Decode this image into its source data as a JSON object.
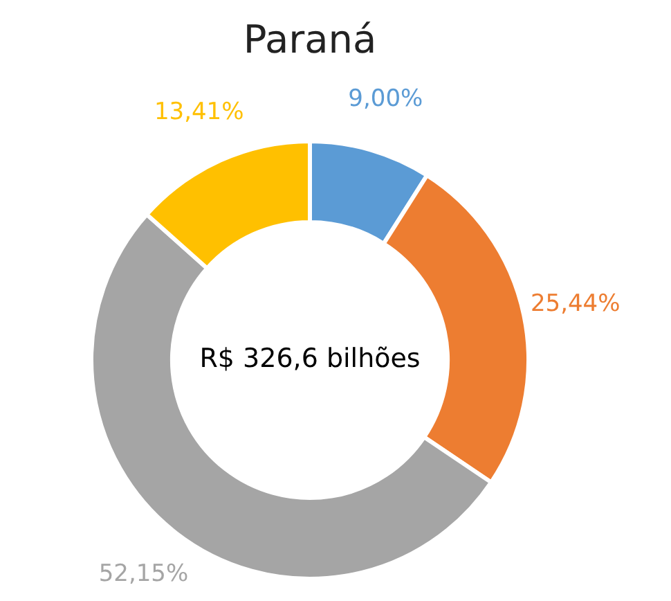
{
  "chart_data": {
    "type": "donut",
    "title": "Paraná",
    "categories": [
      null,
      null,
      null,
      null
    ],
    "values": [
      9.0,
      25.44,
      52.15,
      13.41
    ],
    "colors": [
      "#5b9bd5",
      "#ed7d31",
      "#a5a5a5",
      "#ffc000"
    ],
    "value_labels": [
      "9,00%",
      "25,44%",
      "52,15%",
      "13,41%"
    ],
    "annotations": [
      "R$ 326,6 bilhões"
    ]
  }
}
